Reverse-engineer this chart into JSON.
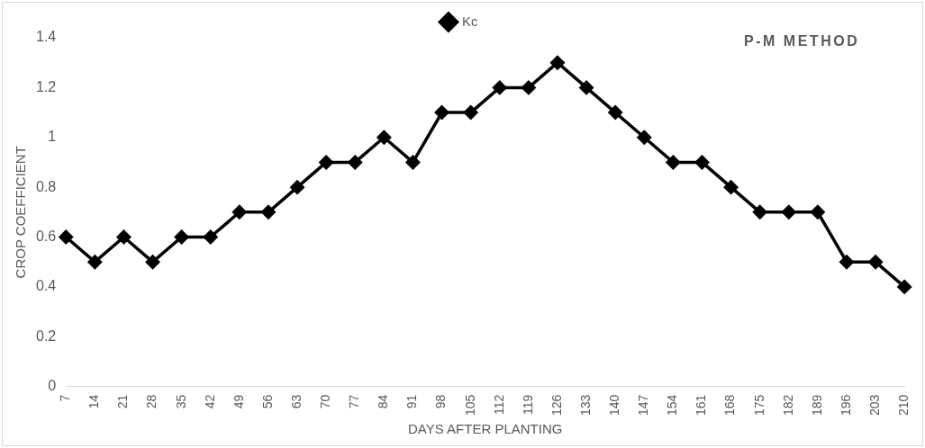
{
  "chart_data": {
    "type": "line",
    "xlabel": "DAYS AFTER PLANTING",
    "ylabel": "CROP COEFFICIENT",
    "annotations": [
      "P-M METHOD"
    ],
    "categories": [
      "7",
      "14",
      "21",
      "28",
      "35",
      "42",
      "49",
      "56",
      "63",
      "70",
      "77",
      "84",
      "91",
      "98",
      "105",
      "112",
      "119",
      "126",
      "133",
      "140",
      "147",
      "154",
      "161",
      "168",
      "175",
      "182",
      "189",
      "196",
      "203",
      "210"
    ],
    "series": [
      {
        "name": "Kc",
        "color": "#000000",
        "values": [
          0.6,
          0.5,
          0.6,
          0.5,
          0.6,
          0.6,
          0.7,
          0.7,
          0.8,
          0.9,
          0.9,
          1.0,
          0.9,
          1.1,
          1.1,
          1.2,
          1.2,
          1.3,
          1.2,
          1.1,
          1.0,
          0.9,
          0.9,
          0.8,
          0.7,
          0.7,
          0.7,
          0.5,
          0.5,
          0.4
        ]
      }
    ],
    "ylim": [
      0,
      1.4
    ],
    "yticks": [
      0,
      0.2,
      0.4,
      0.6,
      0.8,
      1,
      1.2,
      1.4
    ],
    "grid": false,
    "legend": "top",
    "marker": "diamond",
    "line_style": "solid"
  }
}
